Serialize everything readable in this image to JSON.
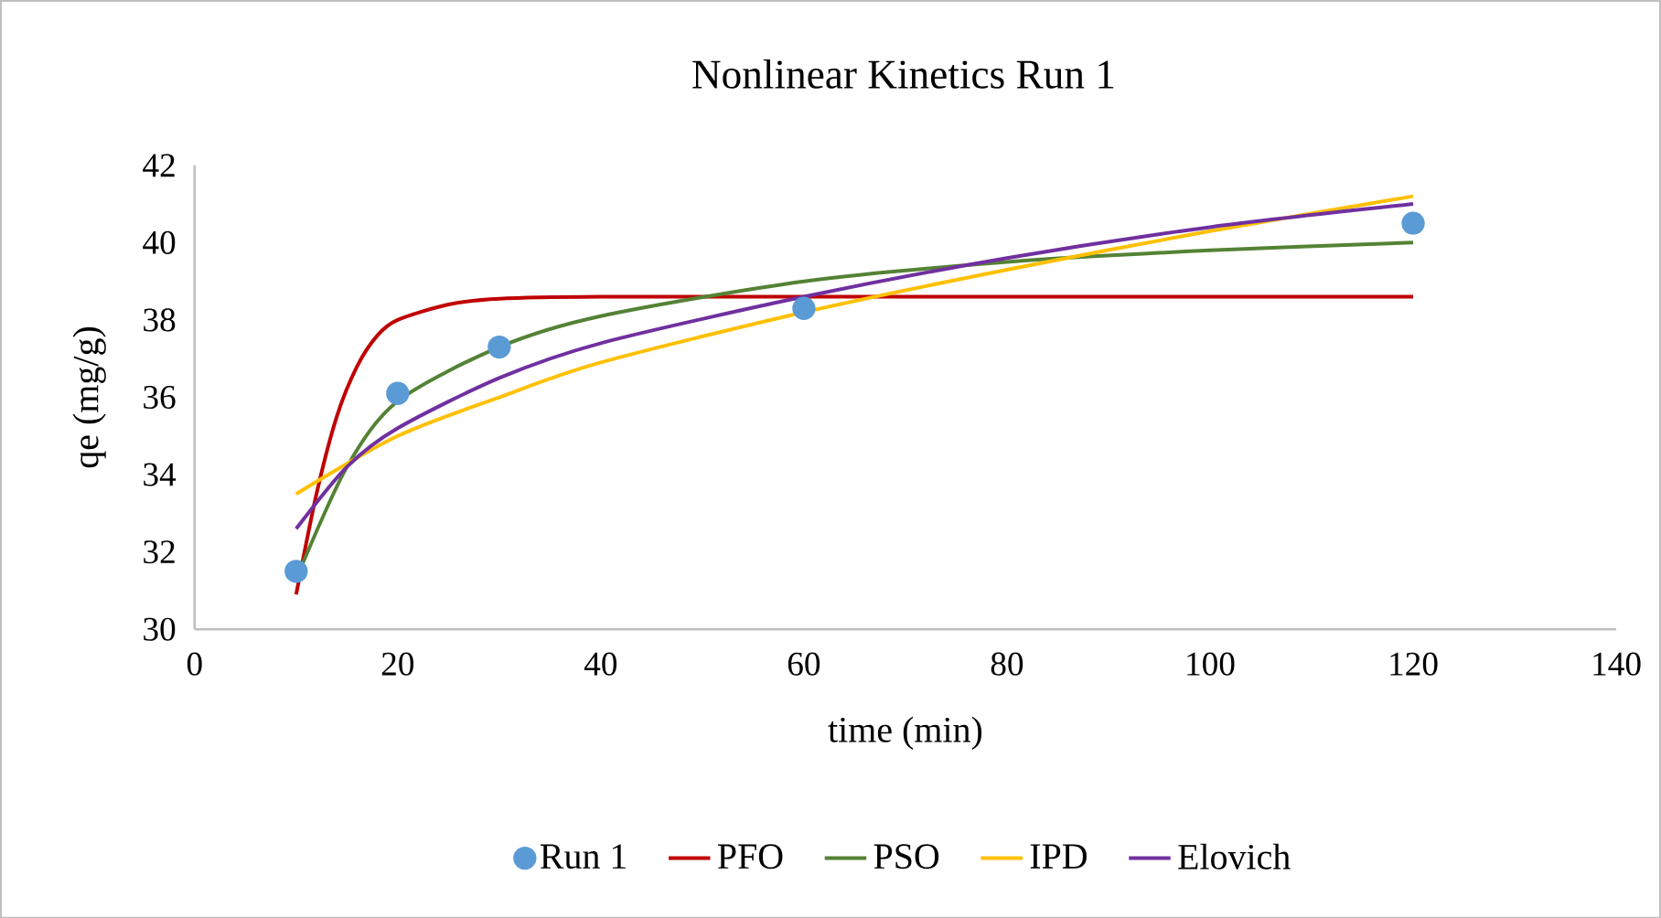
{
  "chart_data": {
    "type": "line",
    "title": "Nonlinear Kinetics Run 1",
    "xlabel": "time (min)",
    "ylabel": "qe (mg/g)",
    "xlim": [
      0,
      140
    ],
    "xticks": [
      0,
      20,
      40,
      60,
      80,
      100,
      120,
      140
    ],
    "ylim": [
      30,
      42
    ],
    "yticks": [
      30,
      32,
      34,
      36,
      38,
      40,
      42
    ],
    "legend": "bottom",
    "series": [
      {
        "name": "Run 1",
        "type": "scatter",
        "marker": "circle",
        "color": "#5b9bd5",
        "x": [
          10,
          20,
          30,
          60,
          120
        ],
        "values": [
          31.5,
          36.1,
          37.3,
          38.3,
          40.5
        ]
      },
      {
        "name": "PFO",
        "color": "#c00000",
        "x": [
          10,
          12,
          14,
          16,
          18,
          20,
          25,
          30,
          40,
          60,
          120
        ],
        "values": [
          30.9,
          33.5,
          35.5,
          36.8,
          37.6,
          38.0,
          38.4,
          38.55,
          38.6,
          38.6,
          38.6
        ]
      },
      {
        "name": "PSO",
        "color": "#548235",
        "x": [
          10,
          15,
          20,
          30,
          40,
          60,
          80,
          100,
          120
        ],
        "values": [
          31.3,
          34.2,
          35.9,
          37.3,
          38.1,
          39.0,
          39.5,
          39.8,
          40.0
        ]
      },
      {
        "name": "IPD",
        "color": "#ffc000",
        "x": [
          10,
          20,
          30,
          40,
          60,
          80,
          100,
          120
        ],
        "values": [
          33.5,
          35.0,
          36.0,
          36.9,
          38.2,
          39.3,
          40.3,
          41.2
        ]
      },
      {
        "name": "Elovich",
        "color": "#7030a0",
        "x": [
          10,
          15,
          20,
          30,
          40,
          60,
          80,
          100,
          120
        ],
        "values": [
          32.6,
          34.2,
          35.2,
          36.5,
          37.4,
          38.6,
          39.6,
          40.4,
          41.0
        ]
      }
    ]
  }
}
